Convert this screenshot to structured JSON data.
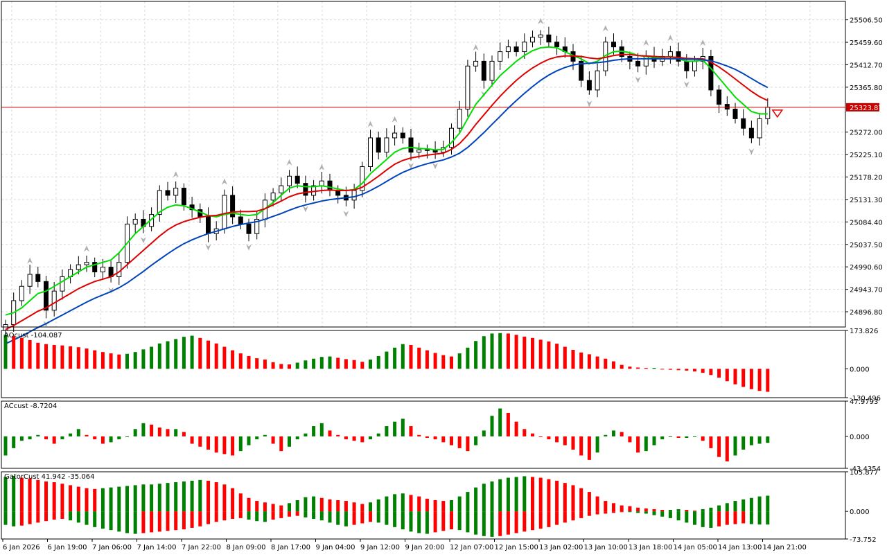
{
  "colors": {
    "background": "#ffffff",
    "grid": "#d8d8d8",
    "frame": "#000000",
    "ma_fast": "#00dd00",
    "ma_mid": "#dd0000",
    "ma_slow": "#0044bb",
    "hist_up": "#008000",
    "hist_down": "#ff0000",
    "price_line": "#cc0000",
    "fractal": "#b0b0b0"
  },
  "chart_data": [
    {
      "type": "candlestick",
      "pane": "price",
      "current_price": 25323.87,
      "current_price_label": "25323.87",
      "y_ticks": [
        "25506.50",
        "25459.60",
        "25412.70",
        "25365.80",
        "25272.00",
        "25225.10",
        "25178.20",
        "25131.30",
        "25084.40",
        "25037.50",
        "24990.60",
        "24943.70",
        "24896.80"
      ],
      "ylim": [
        24865,
        25545
      ],
      "grid": true,
      "closes": [
        24870,
        24920,
        24950,
        24975,
        24960,
        24900,
        24940,
        24970,
        24985,
        24995,
        25000,
        24980,
        24990,
        24970,
        25000,
        25080,
        25090,
        25075,
        25100,
        25150,
        25140,
        25155,
        25120,
        25110,
        25095,
        25060,
        25070,
        25140,
        25095,
        25080,
        25060,
        25090,
        25130,
        25145,
        25160,
        25180,
        25165,
        25140,
        25160,
        25170,
        25150,
        25140,
        25130,
        25150,
        25200,
        25260,
        25230,
        25260,
        25270,
        25260,
        25230,
        25235,
        25235,
        25230,
        25240,
        25280,
        25320,
        25410,
        25420,
        25380,
        25420,
        25440,
        25450,
        25440,
        25460,
        25470,
        25475,
        25460,
        25450,
        25440,
        25420,
        25380,
        25360,
        25400,
        25460,
        25450,
        25430,
        25420,
        25410,
        25430,
        25420,
        25430,
        25440,
        25420,
        25400,
        25420,
        25430,
        25360,
        25330,
        25320,
        25300,
        25280,
        25260,
        25300,
        25323.87
      ],
      "annotations": [
        "fractal arrows above/below extreme bars",
        "sell arrow at last bar"
      ]
    },
    {
      "type": "line",
      "pane": "price",
      "series": [
        {
          "color": "#00dd00",
          "values": [
            24890,
            24895,
            24905,
            24920,
            24935,
            24940,
            24950,
            24960,
            24970,
            24980,
            24990,
            24995,
            25000,
            25005,
            25020,
            25040,
            25060,
            25075,
            25090,
            25105,
            25115,
            25120,
            25118,
            25112,
            25105,
            25098,
            25095,
            25100,
            25103,
            25100,
            25098,
            25100,
            25112,
            25125,
            25140,
            25155,
            25160,
            25158,
            25158,
            25160,
            25157,
            25153,
            25150,
            25152,
            25165,
            25185,
            25200,
            25215,
            25230,
            25238,
            25240,
            25238,
            25237,
            25235,
            25236,
            25250,
            25270,
            25300,
            25330,
            25350,
            25370,
            25390,
            25405,
            25420,
            25432,
            25442,
            25448,
            25450,
            25448,
            25440,
            25432,
            25425,
            25415,
            25420,
            25432,
            25440,
            25441,
            25438,
            25432,
            25430,
            25428,
            25428,
            25430,
            25425,
            25420,
            25420,
            25422,
            25405,
            25385,
            25365,
            25345,
            25330,
            25315,
            25310,
            25310
          ]
        },
        {
          "color": "#dd0000",
          "values": [
            24860,
            24868,
            24878,
            24888,
            24898,
            24905,
            24915,
            24925,
            24935,
            24945,
            24953,
            24960,
            24965,
            24970,
            24980,
            24995,
            25010,
            25025,
            25040,
            25055,
            25068,
            25078,
            25085,
            25090,
            25094,
            25097,
            25098,
            25102,
            25105,
            25106,
            25106,
            25107,
            25112,
            25120,
            25128,
            25137,
            25143,
            25146,
            25148,
            25150,
            25151,
            25150,
            25150,
            25151,
            25157,
            25168,
            25180,
            25193,
            25205,
            25213,
            25218,
            25221,
            25224,
            25226,
            25228,
            25236,
            25248,
            25266,
            25288,
            25308,
            25328,
            25347,
            25364,
            25380,
            25394,
            25406,
            25416,
            25424,
            25429,
            25431,
            25431,
            25430,
            25427,
            25425,
            25428,
            25432,
            25434,
            25434,
            25432,
            25431,
            25430,
            25429,
            25429,
            25428,
            25426,
            25425,
            25425,
            25418,
            25408,
            25396,
            25383,
            25370,
            25357,
            25346,
            25338
          ]
        },
        {
          "color": "#0044bb",
          "values": [
            24830,
            24838,
            24846,
            24855,
            24864,
            24872,
            24881,
            24890,
            24899,
            24908,
            24917,
            24925,
            24932,
            24939,
            24947,
            24957,
            24969,
            24981,
            24994,
            25006,
            25018,
            25029,
            25039,
            25047,
            25054,
            25060,
            25065,
            25070,
            25075,
            25079,
            25082,
            25085,
            25090,
            25096,
            25102,
            25109,
            25115,
            25120,
            25124,
            25128,
            25131,
            25133,
            25135,
            25137,
            25142,
            25150,
            25159,
            25169,
            25179,
            25188,
            25195,
            25201,
            25206,
            25210,
            25214,
            25220,
            25228,
            25240,
            25255,
            25271,
            25288,
            25305,
            25322,
            25338,
            25353,
            25367,
            25380,
            25391,
            25400,
            25407,
            25412,
            25415,
            25416,
            25417,
            25419,
            25422,
            25424,
            25425,
            25425,
            25425,
            25425,
            25425,
            25425,
            25425,
            25424,
            25424,
            25423,
            25421,
            25416,
            25410,
            25403,
            25394,
            25384,
            25374,
            25365
          ]
        }
      ]
    },
    {
      "type": "bar",
      "pane": "AOcust",
      "label": "AOcust -104.087",
      "y_ticks": [
        "173.826",
        "0.000",
        "-130.496"
      ],
      "ylim": [
        -130.496,
        173.826
      ],
      "values": [
        155,
        148,
        140,
        130,
        118,
        112,
        108,
        106,
        102,
        98,
        92,
        84,
        76,
        70,
        65,
        68,
        76,
        88,
        100,
        115,
        125,
        135,
        145,
        150,
        140,
        128,
        115,
        100,
        84,
        70,
        58,
        48,
        42,
        30,
        22,
        20,
        28,
        38,
        46,
        54,
        56,
        50,
        44,
        40,
        32,
        42,
        58,
        78,
        96,
        112,
        108,
        96,
        84,
        72,
        62,
        56,
        70,
        96,
        126,
        148,
        160,
        162,
        160,
        154,
        146,
        140,
        132,
        124,
        114,
        100,
        86,
        74,
        66,
        56,
        46,
        34,
        18,
        10,
        6,
        4,
        4,
        -2,
        -4,
        -6,
        -8,
        -12,
        -18,
        -28,
        -40,
        -56,
        -70,
        -82,
        -92,
        -100,
        -104.087
      ]
    },
    {
      "type": "bar",
      "pane": "ACcust",
      "label": "ACcust -8.7204",
      "y_ticks": [
        "47.9793",
        "0.000",
        "-43.4354"
      ],
      "ylim": [
        -43.4354,
        47.9793
      ],
      "values": [
        -26,
        -16,
        -6,
        -4,
        2,
        -4,
        -10,
        -4,
        4,
        10,
        2,
        -4,
        -10,
        -8,
        -4,
        0,
        10,
        18,
        16,
        12,
        10,
        10,
        6,
        -10,
        -14,
        -18,
        -22,
        -24,
        -26,
        -20,
        -12,
        -4,
        2,
        -10,
        -20,
        -14,
        -4,
        4,
        14,
        18,
        8,
        2,
        -4,
        -6,
        -8,
        -4,
        4,
        14,
        20,
        24,
        14,
        2,
        -2,
        -4,
        -8,
        -12,
        -16,
        -20,
        -12,
        8,
        28,
        38,
        32,
        20,
        10,
        4,
        0,
        -4,
        -8,
        -12,
        -18,
        -26,
        -32,
        -22,
        2,
        8,
        6,
        -8,
        -22,
        -20,
        -12,
        -4,
        0,
        -2,
        -2,
        0,
        -6,
        -16,
        -28,
        -34,
        -26,
        -18,
        -12,
        -10,
        -8.7204
      ]
    },
    {
      "type": "bar",
      "pane": "GatorCust",
      "label": "GatorCust 41.942 -35.064",
      "y_ticks": [
        "105.877",
        "0.000",
        "-73.752"
      ],
      "ylim": [
        -73.752,
        105.877
      ],
      "upper": [
        92,
        95,
        90,
        88,
        84,
        80,
        78,
        74,
        70,
        66,
        62,
        60,
        62,
        64,
        66,
        68,
        70,
        72,
        72,
        74,
        76,
        78,
        80,
        82,
        84,
        82,
        78,
        72,
        62,
        48,
        36,
        28,
        24,
        20,
        16,
        22,
        30,
        38,
        40,
        36,
        32,
        30,
        28,
        24,
        20,
        24,
        32,
        40,
        46,
        48,
        44,
        40,
        34,
        30,
        28,
        30,
        40,
        52,
        64,
        74,
        80,
        86,
        90,
        92,
        94,
        92,
        90,
        86,
        82,
        76,
        70,
        62,
        52,
        40,
        28,
        22,
        16,
        14,
        10,
        8,
        6,
        4,
        4,
        6,
        4,
        2,
        6,
        10,
        16,
        22,
        28,
        32,
        36,
        40,
        41.942
      ],
      "lower": [
        -36,
        -40,
        -38,
        -34,
        -30,
        -26,
        -22,
        -20,
        -24,
        -30,
        -36,
        -42,
        -46,
        -50,
        -54,
        -58,
        -60,
        -58,
        -56,
        -54,
        -52,
        -50,
        -48,
        -44,
        -40,
        -34,
        -28,
        -24,
        -20,
        -18,
        -22,
        -26,
        -28,
        -22,
        -18,
        -14,
        -12,
        -16,
        -20,
        -24,
        -30,
        -36,
        -40,
        -36,
        -32,
        -28,
        -30,
        -36,
        -42,
        -48,
        -54,
        -58,
        -60,
        -56,
        -52,
        -48,
        -50,
        -56,
        -62,
        -66,
        -68,
        -66,
        -62,
        -58,
        -54,
        -50,
        -46,
        -42,
        -36,
        -30,
        -24,
        -18,
        -12,
        -8,
        -6,
        -4,
        -2,
        -2,
        -4,
        -6,
        -10,
        -14,
        -18,
        -24,
        -30,
        -36,
        -42,
        -44,
        -40,
        -36,
        -34,
        -32,
        -34,
        -35,
        -35.064
      ]
    }
  ],
  "time_axis": {
    "labels": [
      "6 Jan 2026",
      "6 Jan 19:00",
      "7 Jan 06:00",
      "7 Jan 14:00",
      "7 Jan 22:00",
      "8 Jan 09:00",
      "8 Jan 17:00",
      "9 Jan 04:00",
      "9 Jan 12:00",
      "9 Jan 20:00",
      "12 Jan 07:00",
      "12 Jan 15:00",
      "13 Jan 02:00",
      "13 Jan 10:00",
      "13 Jan 18:00",
      "14 Jan 05:00",
      "14 Jan 13:00",
      "14 Jan 21:00"
    ]
  }
}
